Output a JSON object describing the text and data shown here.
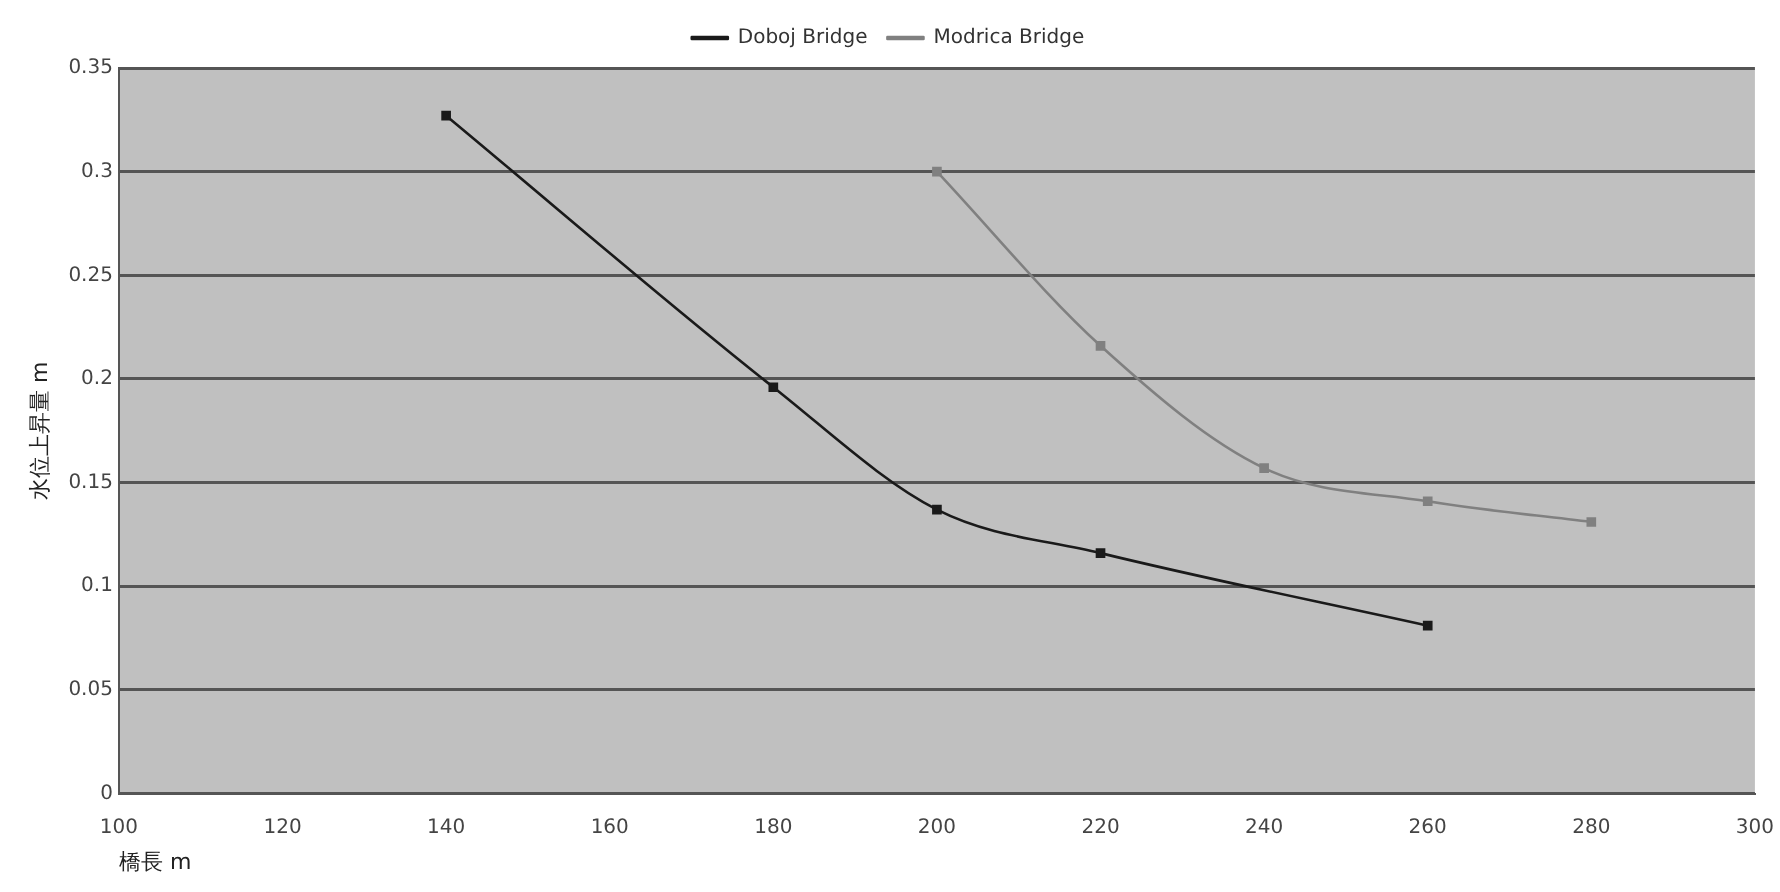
{
  "chart_data": {
    "type": "line",
    "xlabel": "橋長 m",
    "ylabel": "水位上昇量 m",
    "xlim": [
      100,
      300
    ],
    "xticks": [
      100,
      120,
      140,
      160,
      180,
      200,
      220,
      240,
      260,
      280,
      300
    ],
    "ylim": [
      0,
      0.35
    ],
    "yticks": [
      0,
      0.05,
      0.1,
      0.15,
      0.2,
      0.25,
      0.3,
      0.35
    ],
    "grid": "y",
    "legend": "top",
    "marker": "square",
    "line_style": "solid",
    "series": [
      {
        "name": "Doboj Bridge",
        "color": "#1a1a1a",
        "x": [
          140,
          180,
          200,
          220,
          260
        ],
        "values": [
          0.327,
          0.196,
          0.137,
          0.116,
          0.081
        ]
      },
      {
        "name": "Modrica Bridge",
        "color": "#808080",
        "x": [
          200,
          220,
          240,
          260,
          280
        ],
        "values": [
          0.3,
          0.216,
          0.157,
          0.141,
          0.131
        ]
      }
    ]
  }
}
